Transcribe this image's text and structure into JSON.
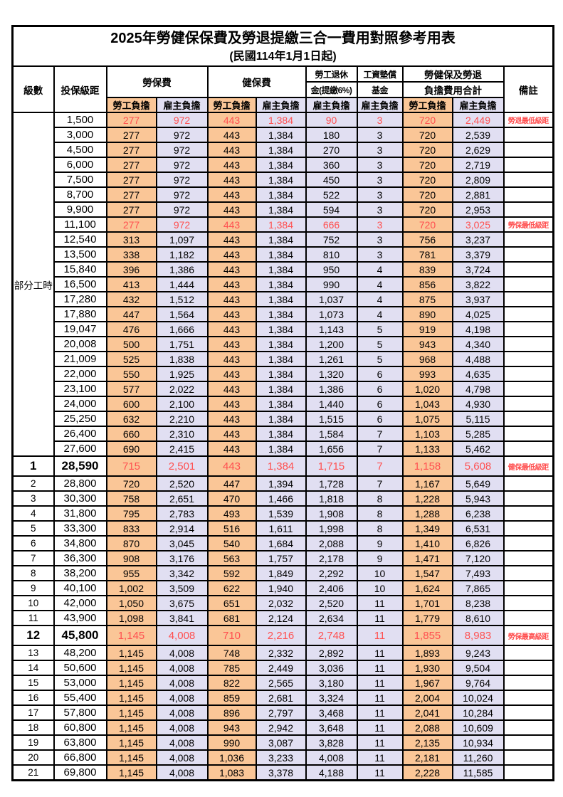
{
  "page": {
    "title": "2025年勞健保保費及勞退提繳三合一費用對照參考用表",
    "subtitle": "(民國114年1月1日起)"
  },
  "colors": {
    "employee_column_bg": "#FAC697",
    "employer_column_bg": "#E1DFF2",
    "highlight_text": "#FF5050",
    "border": "#000000"
  },
  "table": {
    "headers": {
      "level": "級數",
      "bracket": "投保級距",
      "labor": "勞保費",
      "health": "健保費",
      "pension_line1": "勞工退休",
      "pension_line2": "金(提繳6%)",
      "wage_fund_line1": "工資墊償",
      "wage_fund_line2": "基金",
      "total_line1": "勞健保及勞退",
      "total_line2": "負擔費用合計",
      "remark": "備註",
      "employee": "勞工負擔",
      "employer": "雇主負擔"
    },
    "rows": [
      {
        "level": "部分工時",
        "level_rowspan": 23,
        "bracket": "1,500",
        "values": [
          "277",
          "972",
          "443",
          "1,384",
          "90",
          "3",
          "720",
          "2,449"
        ],
        "remark": "勞退最低級距",
        "red": true
      },
      {
        "bracket": "3,000",
        "values": [
          "277",
          "972",
          "443",
          "1,384",
          "180",
          "3",
          "720",
          "2,539"
        ]
      },
      {
        "bracket": "4,500",
        "values": [
          "277",
          "972",
          "443",
          "1,384",
          "270",
          "3",
          "720",
          "2,629"
        ]
      },
      {
        "bracket": "6,000",
        "values": [
          "277",
          "972",
          "443",
          "1,384",
          "360",
          "3",
          "720",
          "2,719"
        ]
      },
      {
        "bracket": "7,500",
        "values": [
          "277",
          "972",
          "443",
          "1,384",
          "450",
          "3",
          "720",
          "2,809"
        ]
      },
      {
        "bracket": "8,700",
        "values": [
          "277",
          "972",
          "443",
          "1,384",
          "522",
          "3",
          "720",
          "2,881"
        ]
      },
      {
        "bracket": "9,900",
        "values": [
          "277",
          "972",
          "443",
          "1,384",
          "594",
          "3",
          "720",
          "2,953"
        ]
      },
      {
        "bracket": "11,100",
        "values": [
          "277",
          "972",
          "443",
          "1,384",
          "666",
          "3",
          "720",
          "3,025"
        ],
        "remark": "勞保最低級距",
        "red": true
      },
      {
        "bracket": "12,540",
        "values": [
          "313",
          "1,097",
          "443",
          "1,384",
          "752",
          "3",
          "756",
          "3,237"
        ]
      },
      {
        "bracket": "13,500",
        "values": [
          "338",
          "1,182",
          "443",
          "1,384",
          "810",
          "3",
          "781",
          "3,379"
        ]
      },
      {
        "bracket": "15,840",
        "values": [
          "396",
          "1,386",
          "443",
          "1,384",
          "950",
          "4",
          "839",
          "3,724"
        ]
      },
      {
        "bracket": "16,500",
        "values": [
          "413",
          "1,444",
          "443",
          "1,384",
          "990",
          "4",
          "856",
          "3,822"
        ]
      },
      {
        "bracket": "17,280",
        "values": [
          "432",
          "1,512",
          "443",
          "1,384",
          "1,037",
          "4",
          "875",
          "3,937"
        ]
      },
      {
        "bracket": "17,880",
        "values": [
          "447",
          "1,564",
          "443",
          "1,384",
          "1,073",
          "4",
          "890",
          "4,025"
        ]
      },
      {
        "bracket": "19,047",
        "values": [
          "476",
          "1,666",
          "443",
          "1,384",
          "1,143",
          "5",
          "919",
          "4,198"
        ]
      },
      {
        "bracket": "20,008",
        "values": [
          "500",
          "1,751",
          "443",
          "1,384",
          "1,200",
          "5",
          "943",
          "4,340"
        ]
      },
      {
        "bracket": "21,009",
        "values": [
          "525",
          "1,838",
          "443",
          "1,384",
          "1,261",
          "5",
          "968",
          "4,488"
        ]
      },
      {
        "bracket": "22,000",
        "values": [
          "550",
          "1,925",
          "443",
          "1,384",
          "1,320",
          "6",
          "993",
          "4,635"
        ]
      },
      {
        "bracket": "23,100",
        "values": [
          "577",
          "2,022",
          "443",
          "1,384",
          "1,386",
          "6",
          "1,020",
          "4,798"
        ]
      },
      {
        "bracket": "24,000",
        "values": [
          "600",
          "2,100",
          "443",
          "1,384",
          "1,440",
          "6",
          "1,043",
          "4,930"
        ]
      },
      {
        "bracket": "25,250",
        "values": [
          "632",
          "2,210",
          "443",
          "1,384",
          "1,515",
          "6",
          "1,075",
          "5,115"
        ]
      },
      {
        "bracket": "26,400",
        "values": [
          "660",
          "2,310",
          "443",
          "1,384",
          "1,584",
          "7",
          "1,103",
          "5,285"
        ]
      },
      {
        "bracket": "27,600",
        "values": [
          "690",
          "2,415",
          "443",
          "1,384",
          "1,656",
          "7",
          "1,133",
          "5,462"
        ]
      },
      {
        "level": "1",
        "bracket": "28,590",
        "values": [
          "715",
          "2,501",
          "443",
          "1,384",
          "1,715",
          "7",
          "1,158",
          "5,608"
        ],
        "remark": "健保最低級距",
        "red": true,
        "big": true
      },
      {
        "level": "2",
        "bracket": "28,800",
        "values": [
          "720",
          "2,520",
          "447",
          "1,394",
          "1,728",
          "7",
          "1,167",
          "5,649"
        ]
      },
      {
        "level": "3",
        "bracket": "30,300",
        "values": [
          "758",
          "2,651",
          "470",
          "1,466",
          "1,818",
          "8",
          "1,228",
          "5,943"
        ]
      },
      {
        "level": "4",
        "bracket": "31,800",
        "values": [
          "795",
          "2,783",
          "493",
          "1,539",
          "1,908",
          "8",
          "1,288",
          "6,238"
        ]
      },
      {
        "level": "5",
        "bracket": "33,300",
        "values": [
          "833",
          "2,914",
          "516",
          "1,611",
          "1,998",
          "8",
          "1,349",
          "6,531"
        ]
      },
      {
        "level": "6",
        "bracket": "34,800",
        "values": [
          "870",
          "3,045",
          "540",
          "1,684",
          "2,088",
          "9",
          "1,410",
          "6,826"
        ]
      },
      {
        "level": "7",
        "bracket": "36,300",
        "values": [
          "908",
          "3,176",
          "563",
          "1,757",
          "2,178",
          "9",
          "1,471",
          "7,120"
        ]
      },
      {
        "level": "8",
        "bracket": "38,200",
        "values": [
          "955",
          "3,342",
          "592",
          "1,849",
          "2,292",
          "10",
          "1,547",
          "7,493"
        ]
      },
      {
        "level": "9",
        "bracket": "40,100",
        "values": [
          "1,002",
          "3,509",
          "622",
          "1,940",
          "2,406",
          "10",
          "1,624",
          "7,865"
        ]
      },
      {
        "level": "10",
        "bracket": "42,000",
        "values": [
          "1,050",
          "3,675",
          "651",
          "2,032",
          "2,520",
          "11",
          "1,701",
          "8,238"
        ]
      },
      {
        "level": "11",
        "bracket": "43,900",
        "values": [
          "1,098",
          "3,841",
          "681",
          "2,124",
          "2,634",
          "11",
          "1,779",
          "8,610"
        ]
      },
      {
        "level": "12",
        "bracket": "45,800",
        "values": [
          "1,145",
          "4,008",
          "710",
          "2,216",
          "2,748",
          "11",
          "1,855",
          "8,983"
        ],
        "remark": "勞保最高級距",
        "red": true,
        "big": true
      },
      {
        "level": "13",
        "bracket": "48,200",
        "values": [
          "1,145",
          "4,008",
          "748",
          "2,332",
          "2,892",
          "11",
          "1,893",
          "9,243"
        ]
      },
      {
        "level": "14",
        "bracket": "50,600",
        "values": [
          "1,145",
          "4,008",
          "785",
          "2,449",
          "3,036",
          "11",
          "1,930",
          "9,504"
        ]
      },
      {
        "level": "15",
        "bracket": "53,000",
        "values": [
          "1,145",
          "4,008",
          "822",
          "2,565",
          "3,180",
          "11",
          "1,967",
          "9,764"
        ]
      },
      {
        "level": "16",
        "bracket": "55,400",
        "values": [
          "1,145",
          "4,008",
          "859",
          "2,681",
          "3,324",
          "11",
          "2,004",
          "10,024"
        ]
      },
      {
        "level": "17",
        "bracket": "57,800",
        "values": [
          "1,145",
          "4,008",
          "896",
          "2,797",
          "3,468",
          "11",
          "2,041",
          "10,284"
        ]
      },
      {
        "level": "18",
        "bracket": "60,800",
        "values": [
          "1,145",
          "4,008",
          "943",
          "2,942",
          "3,648",
          "11",
          "2,088",
          "10,609"
        ]
      },
      {
        "level": "19",
        "bracket": "63,800",
        "values": [
          "1,145",
          "4,008",
          "990",
          "3,087",
          "3,828",
          "11",
          "2,135",
          "10,934"
        ]
      },
      {
        "level": "20",
        "bracket": "66,800",
        "values": [
          "1,145",
          "4,008",
          "1,036",
          "3,233",
          "4,008",
          "11",
          "2,181",
          "11,260"
        ]
      },
      {
        "level": "21",
        "bracket": "69,800",
        "values": [
          "1,145",
          "4,008",
          "1,083",
          "3,378",
          "4,188",
          "11",
          "2,228",
          "11,585"
        ]
      }
    ]
  }
}
